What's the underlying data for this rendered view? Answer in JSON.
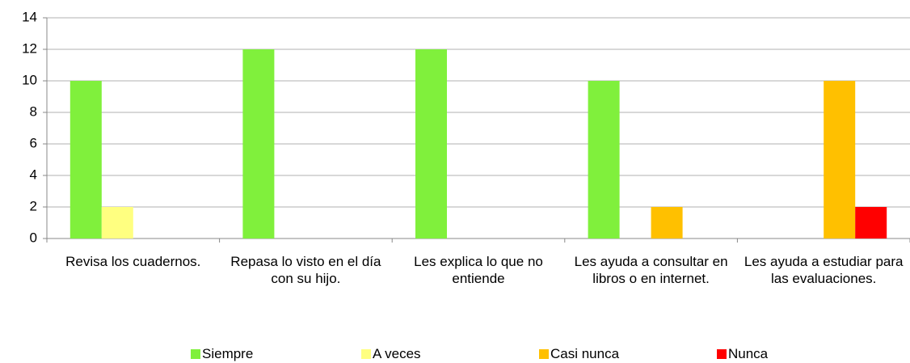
{
  "chart_data": {
    "type": "bar",
    "categories": [
      "Revisa los cuadernos.",
      "Repasa lo visto en el día con su hijo.",
      "Les explica lo que no entiende",
      "Les ayuda a consultar en libros o en internet.",
      "Les ayuda a estudiar para las evaluaciones."
    ],
    "series": [
      {
        "name": "Siempre",
        "color": "#80f03c",
        "values": [
          10,
          12,
          12,
          10,
          0
        ]
      },
      {
        "name": "A veces",
        "color": "#ffff80",
        "values": [
          2,
          0,
          0,
          0,
          0
        ]
      },
      {
        "name": "Casi nunca",
        "color": "#ffc000",
        "values": [
          0,
          0,
          0,
          2,
          10
        ]
      },
      {
        "name": "Nunca",
        "color": "#ff0000",
        "values": [
          0,
          0,
          0,
          0,
          2
        ]
      }
    ],
    "ylim": [
      0,
      14
    ],
    "yticks": [
      0,
      2,
      4,
      6,
      8,
      10,
      12,
      14
    ],
    "grid": true,
    "legend": "bottom"
  }
}
